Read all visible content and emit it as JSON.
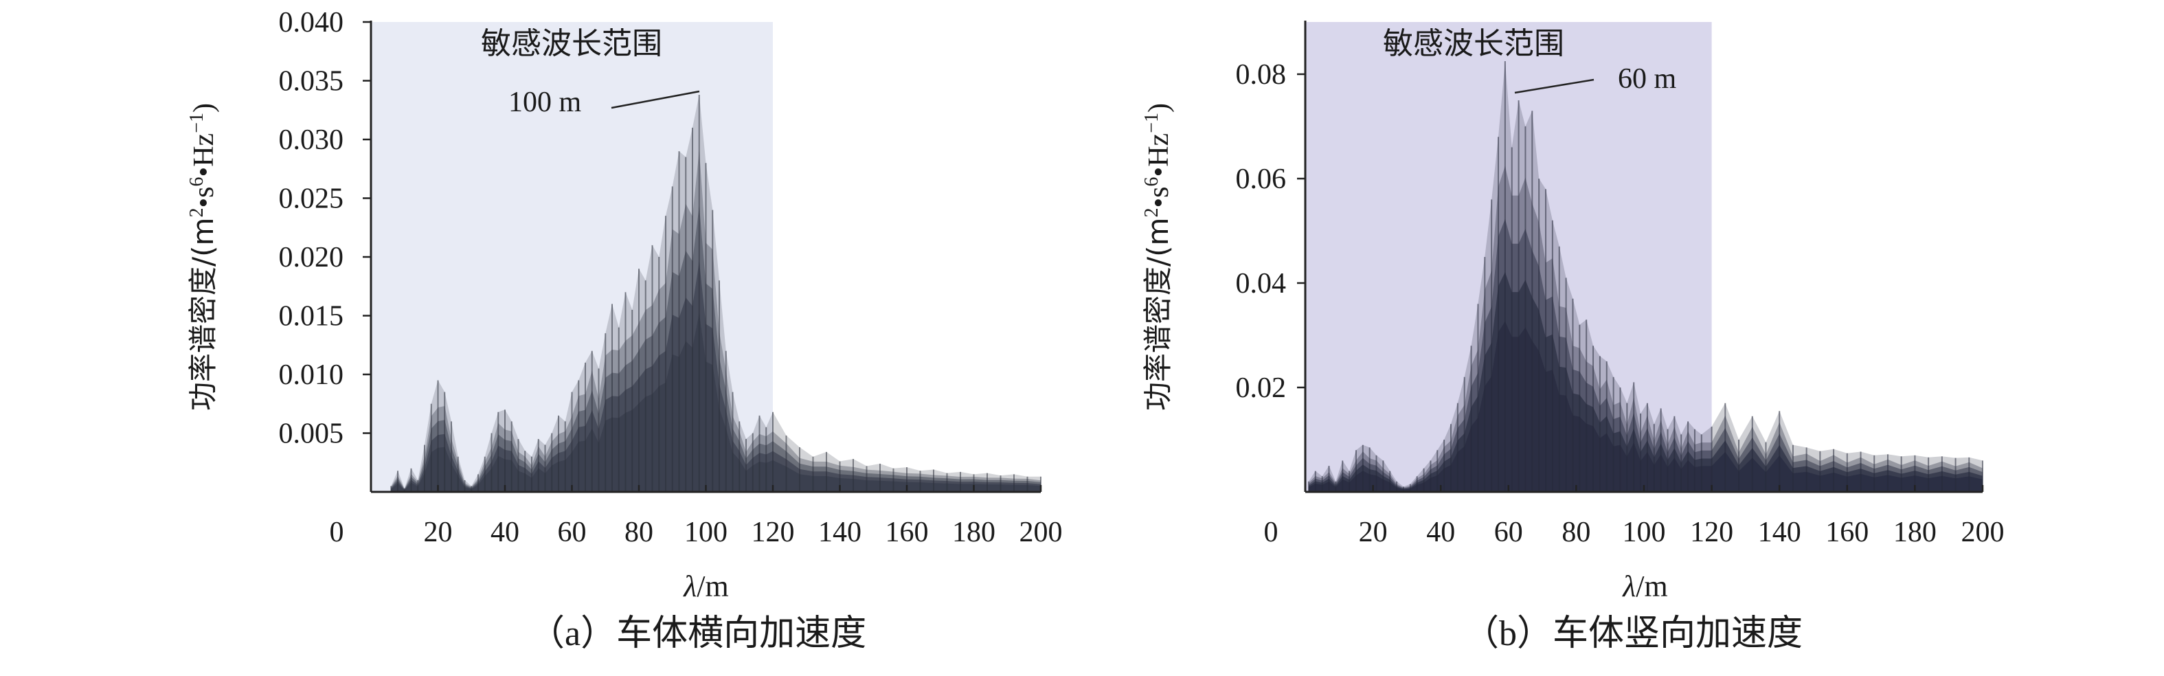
{
  "figure": {
    "captions": [
      {
        "prefix": "（a）",
        "text": "车体横向加速度"
      },
      {
        "prefix": "（b）",
        "text": "车体竖向加速度"
      }
    ]
  },
  "chart_data": [
    {
      "type": "area",
      "title": "",
      "xlabel_italic": "λ",
      "xlabel_unit": "/m",
      "ylabel": "功率谱密度/(m²•s⁶•Hz⁻¹)",
      "xlim": [
        0,
        200
      ],
      "ylim": [
        0,
        0.04
      ],
      "x_ticks": [
        "20",
        "40",
        "60",
        "80",
        "100",
        "120",
        "140",
        "160",
        "180",
        "200"
      ],
      "x_tick_values": [
        20,
        40,
        60,
        80,
        100,
        120,
        140,
        160,
        180,
        200
      ],
      "origin_label": "0",
      "y_ticks": [
        "0.005",
        "0.010",
        "0.015",
        "0.020",
        "0.025",
        "0.030",
        "0.035",
        "0.040"
      ],
      "y_tick_values": [
        0.005,
        0.01,
        0.015,
        0.02,
        0.025,
        0.03,
        0.035,
        0.04
      ],
      "shaded_region": {
        "label": "敏感波长范围",
        "x_range": [
          0,
          120
        ],
        "color": "#e8ebf5"
      },
      "annotation": {
        "text": "100 m",
        "x": 98,
        "y": 0.034
      },
      "envelope": {
        "x": [
          6,
          8,
          10,
          12,
          14,
          16,
          18,
          20,
          22,
          24,
          26,
          28,
          30,
          32,
          34,
          36,
          38,
          40,
          42,
          44,
          46,
          48,
          50,
          52,
          54,
          56,
          58,
          60,
          62,
          64,
          66,
          68,
          70,
          72,
          74,
          76,
          78,
          80,
          82,
          84,
          86,
          88,
          90,
          92,
          94,
          96,
          98,
          100,
          102,
          104,
          106,
          108,
          110,
          112,
          114,
          116,
          118,
          120,
          124,
          128,
          132,
          136,
          140,
          144,
          148,
          152,
          156,
          160,
          164,
          168,
          172,
          176,
          180,
          184,
          188,
          192,
          196,
          200
        ],
        "y": [
          0.0005,
          0.0018,
          0.0003,
          0.002,
          0.001,
          0.004,
          0.0075,
          0.0095,
          0.0085,
          0.006,
          0.003,
          0.001,
          0.0005,
          0.0015,
          0.003,
          0.005,
          0.0068,
          0.007,
          0.006,
          0.0045,
          0.0035,
          0.003,
          0.0045,
          0.004,
          0.005,
          0.0065,
          0.006,
          0.0085,
          0.0095,
          0.011,
          0.012,
          0.0105,
          0.0135,
          0.016,
          0.014,
          0.017,
          0.0155,
          0.019,
          0.018,
          0.021,
          0.02,
          0.0235,
          0.026,
          0.029,
          0.0285,
          0.031,
          0.0338,
          0.028,
          0.024,
          0.018,
          0.012,
          0.0085,
          0.006,
          0.0045,
          0.005,
          0.0065,
          0.0055,
          0.0068,
          0.0048,
          0.0038,
          0.003,
          0.0034,
          0.0026,
          0.0028,
          0.0022,
          0.0024,
          0.002,
          0.0021,
          0.0018,
          0.0019,
          0.0016,
          0.0017,
          0.0015,
          0.0016,
          0.0014,
          0.0015,
          0.0013,
          0.0013
        ]
      }
    },
    {
      "type": "area",
      "title": "",
      "xlabel_italic": "λ",
      "xlabel_unit": "/m",
      "ylabel": "功率谱密度/(m²•s⁶•Hz⁻¹)",
      "xlim": [
        0,
        200
      ],
      "ylim": [
        0,
        0.09
      ],
      "x_ticks": [
        "20",
        "40",
        "60",
        "80",
        "100",
        "120",
        "140",
        "160",
        "180",
        "200"
      ],
      "x_tick_values": [
        20,
        40,
        60,
        80,
        100,
        120,
        140,
        160,
        180,
        200
      ],
      "origin_label": "0",
      "y_ticks": [
        "0.02",
        "0.04",
        "0.06",
        "0.08"
      ],
      "y_tick_values": [
        0.02,
        0.04,
        0.06,
        0.08
      ],
      "shaded_region": {
        "label": "敏感波长范围",
        "x_range": [
          0,
          120
        ],
        "color": "#d9d7ec"
      },
      "annotation": {
        "text": "60 m",
        "x": 60,
        "y": 0.08
      },
      "envelope": {
        "x": [
          1,
          3,
          5,
          7,
          9,
          11,
          13,
          15,
          17,
          19,
          21,
          23,
          25,
          27,
          29,
          31,
          33,
          35,
          37,
          39,
          41,
          43,
          45,
          47,
          49,
          51,
          53,
          55,
          57,
          59,
          61,
          63,
          65,
          67,
          69,
          71,
          73,
          75,
          77,
          79,
          81,
          83,
          85,
          87,
          89,
          91,
          93,
          95,
          97,
          99,
          101,
          103,
          105,
          107,
          109,
          111,
          113,
          115,
          117,
          120,
          124,
          128,
          132,
          136,
          140,
          144,
          148,
          152,
          156,
          160,
          164,
          168,
          172,
          176,
          180,
          184,
          188,
          192,
          196,
          200
        ],
        "y": [
          0.002,
          0.004,
          0.003,
          0.005,
          0.002,
          0.006,
          0.004,
          0.008,
          0.009,
          0.0085,
          0.007,
          0.006,
          0.004,
          0.002,
          0.001,
          0.0015,
          0.003,
          0.0045,
          0.006,
          0.008,
          0.01,
          0.013,
          0.017,
          0.022,
          0.028,
          0.036,
          0.045,
          0.056,
          0.068,
          0.0825,
          0.066,
          0.075,
          0.07,
          0.073,
          0.06,
          0.058,
          0.052,
          0.047,
          0.041,
          0.037,
          0.032,
          0.033,
          0.028,
          0.026,
          0.025,
          0.022,
          0.02,
          0.017,
          0.021,
          0.015,
          0.017,
          0.013,
          0.016,
          0.012,
          0.0145,
          0.011,
          0.0135,
          0.012,
          0.011,
          0.0125,
          0.017,
          0.01,
          0.0145,
          0.0095,
          0.0155,
          0.009,
          0.0085,
          0.0078,
          0.0082,
          0.0074,
          0.0077,
          0.007,
          0.0072,
          0.0068,
          0.007,
          0.0066,
          0.0068,
          0.0065,
          0.0066,
          0.006
        ]
      }
    }
  ]
}
